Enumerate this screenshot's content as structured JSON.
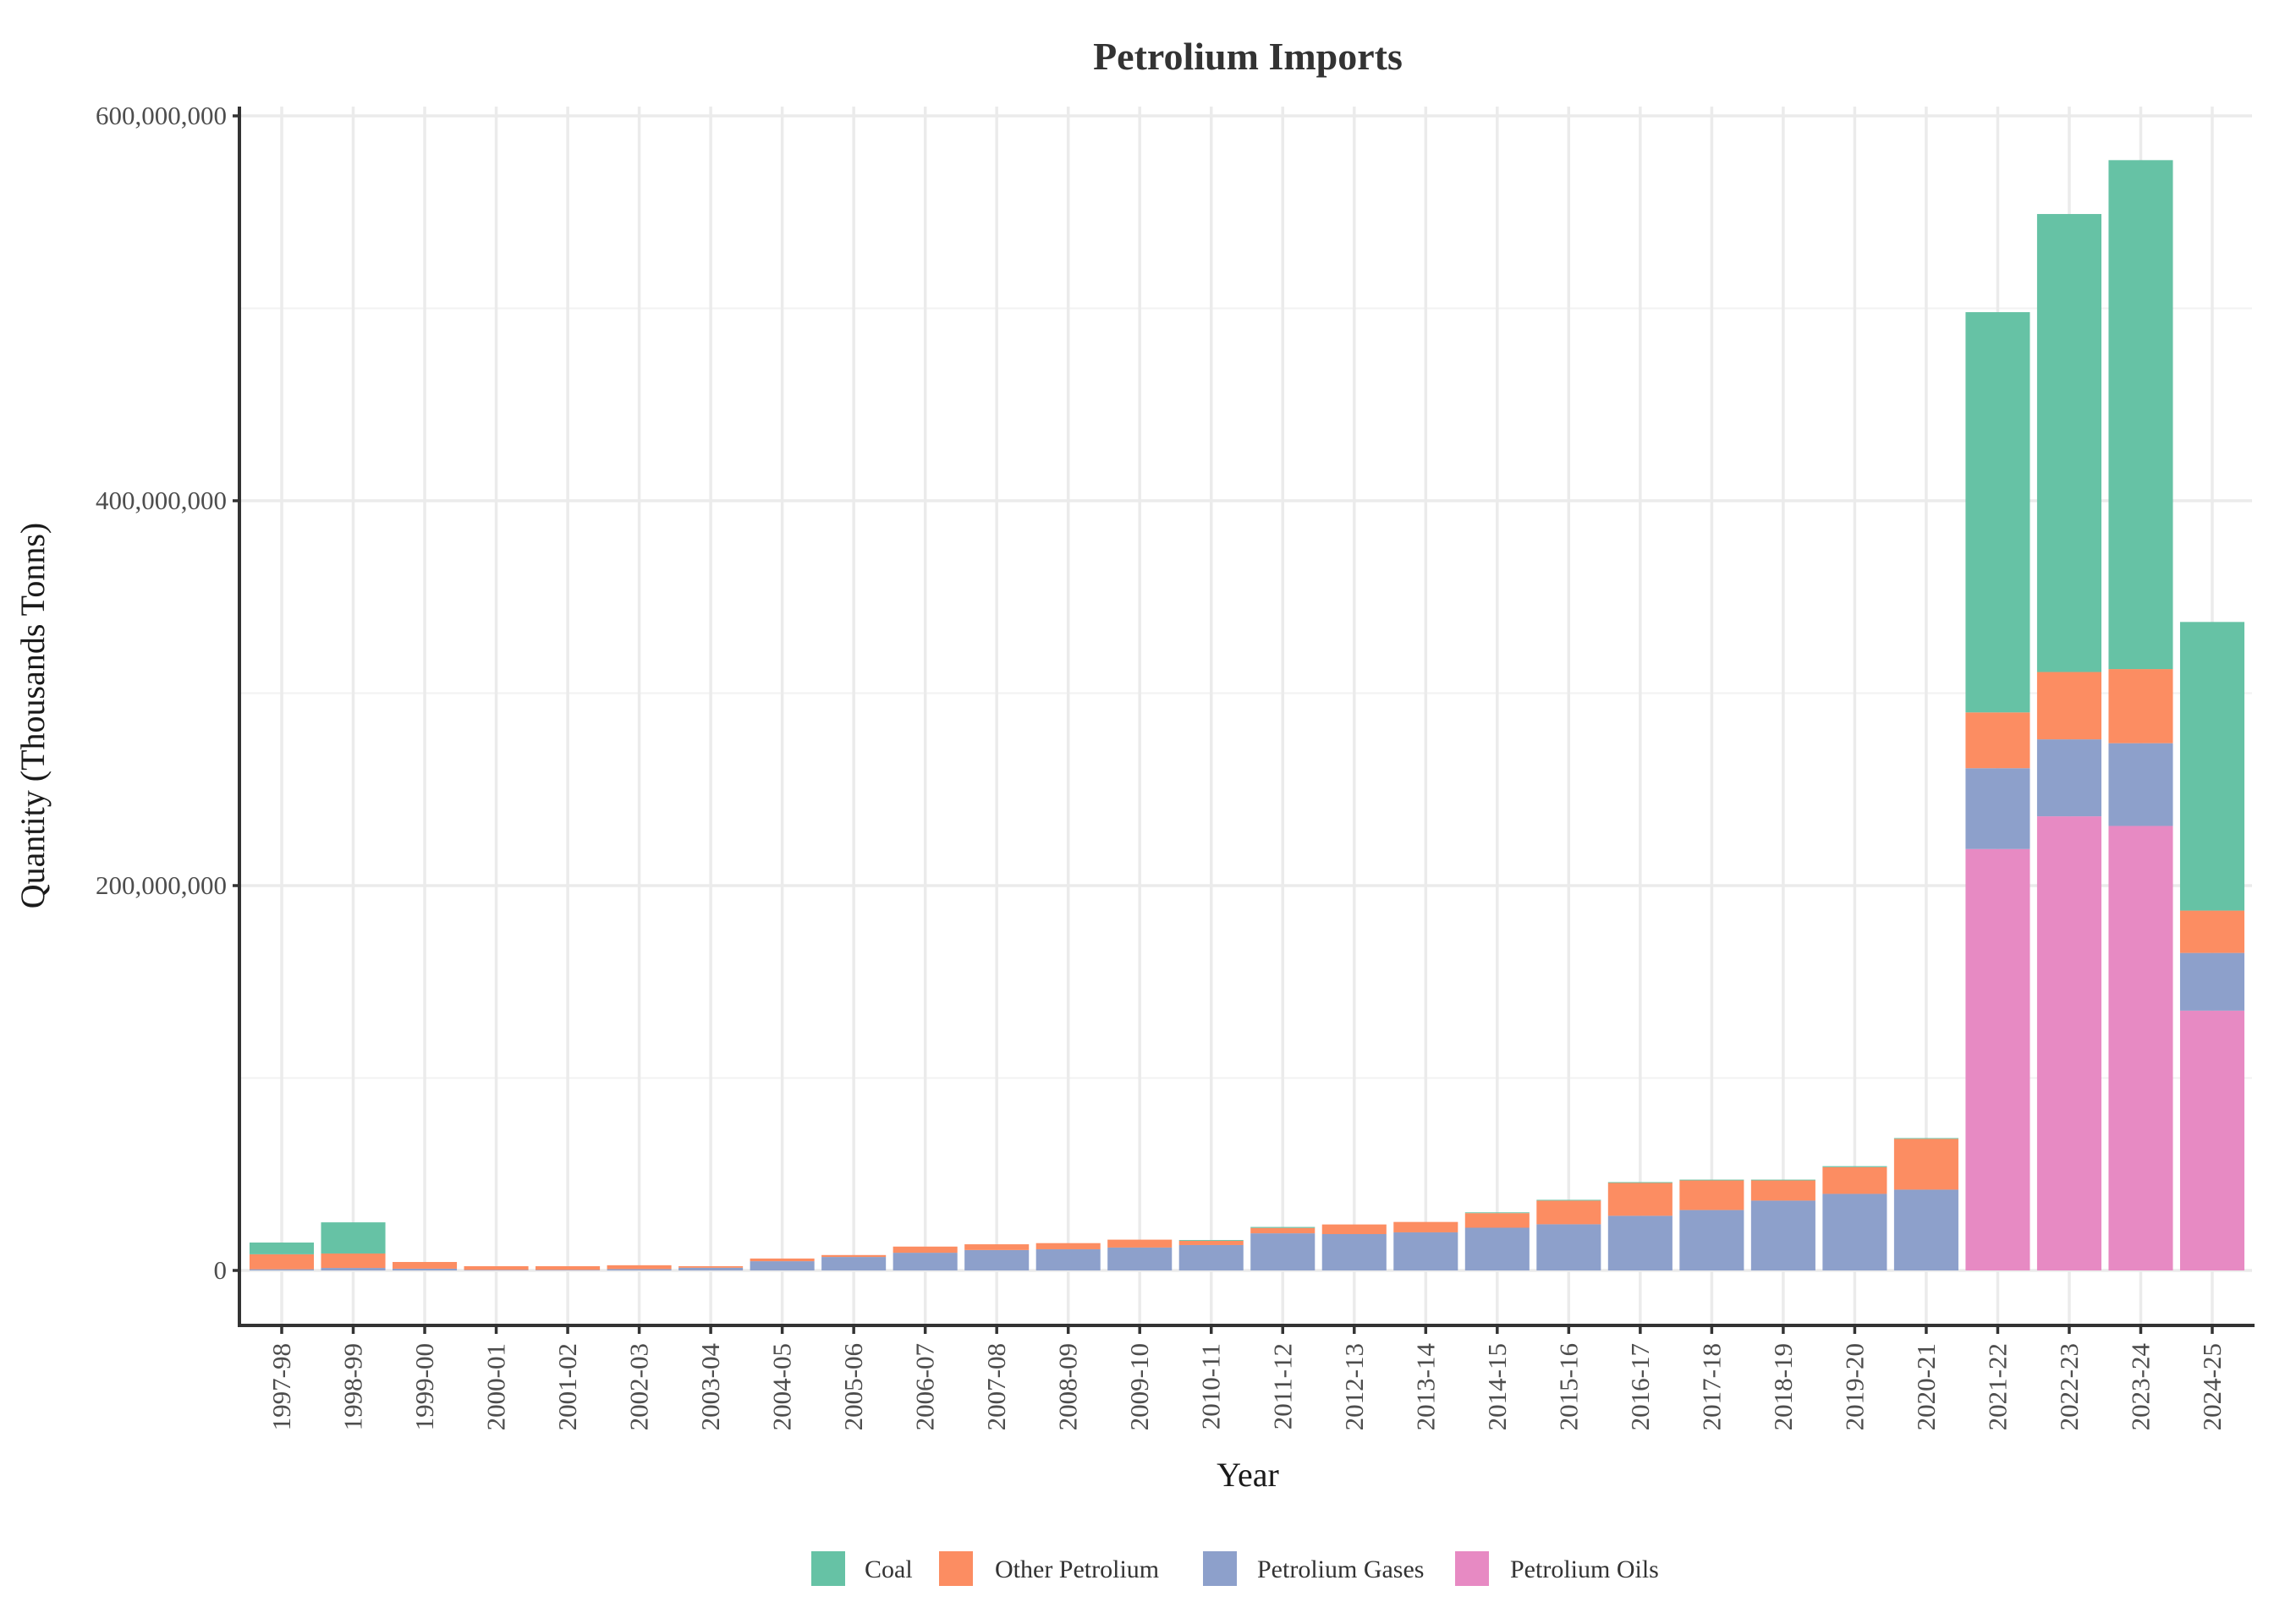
{
  "chart_data": {
    "type": "bar",
    "stacked": true,
    "title": "Petrolium Imports",
    "xlabel": "Year",
    "ylabel": "Quantity (Thousands Tonns)",
    "ylim": [
      -28000000,
      600000000
    ],
    "yticks": [
      0,
      200000000,
      400000000,
      600000000
    ],
    "ytick_labels": [
      "0",
      "200,000,000",
      "400,000,000",
      "600,000,000"
    ],
    "grid": true,
    "legend_position": "bottom",
    "categories": [
      "1997-98",
      "1998-99",
      "1999-00",
      "2000-01",
      "2001-02",
      "2002-03",
      "2003-04",
      "2004-05",
      "2005-06",
      "2006-07",
      "2007-08",
      "2008-09",
      "2009-10",
      "2010-11",
      "2011-12",
      "2012-13",
      "2013-14",
      "2014-15",
      "2015-16",
      "2016-17",
      "2017-18",
      "2018-19",
      "2019-20",
      "2020-21",
      "2021-22",
      "2022-23",
      "2023-24",
      "2024-25"
    ],
    "series": [
      {
        "name": "Petrolium Oils",
        "color": "#e78ac3",
        "values": [
          0,
          0,
          0,
          0,
          0,
          0,
          0,
          0,
          0,
          0,
          0,
          0,
          0,
          0,
          0,
          0,
          0,
          0,
          0,
          0,
          0,
          0,
          0,
          0,
          219000000,
          236000000,
          231000000,
          135000000
        ]
      },
      {
        "name": "Petrolium Gases",
        "color": "#8da0cb",
        "values": [
          600000,
          1300000,
          900000,
          300000,
          300000,
          700000,
          1400000,
          4800000,
          7000000,
          9200000,
          10600000,
          11000000,
          11900000,
          13200000,
          19300000,
          18900000,
          19800000,
          22200000,
          24000000,
          28400000,
          31400000,
          36300000,
          39800000,
          42000000,
          42000000,
          40000000,
          43000000,
          30000000
        ]
      },
      {
        "name": "Other Petrolium",
        "color": "#fc8d62",
        "values": [
          7800000,
          7500000,
          3500000,
          1900000,
          1900000,
          2000000,
          800000,
          1400000,
          1000000,
          3200000,
          3000000,
          3200000,
          4100000,
          2200000,
          2800000,
          5000000,
          5400000,
          7600000,
          12300000,
          17100000,
          15400000,
          10500000,
          13900000,
          26400000,
          29000000,
          35000000,
          38500000,
          22000000
        ]
      },
      {
        "name": "Coal",
        "color": "#66c2a5",
        "values": [
          6100000,
          16200000,
          0,
          0,
          0,
          0,
          0,
          0,
          0,
          0,
          0,
          0,
          0,
          400000,
          500000,
          0,
          0,
          400000,
          400000,
          400000,
          400000,
          400000,
          500000,
          400000,
          208000000,
          238000000,
          264500000,
          150000000
        ]
      }
    ],
    "legend": [
      {
        "name": "Coal",
        "color": "#66c2a5"
      },
      {
        "name": "Other Petrolium",
        "color": "#fc8d62"
      },
      {
        "name": "Petrolium Gases",
        "color": "#8da0cb"
      },
      {
        "name": "Petrolium Oils",
        "color": "#e78ac3"
      }
    ]
  }
}
